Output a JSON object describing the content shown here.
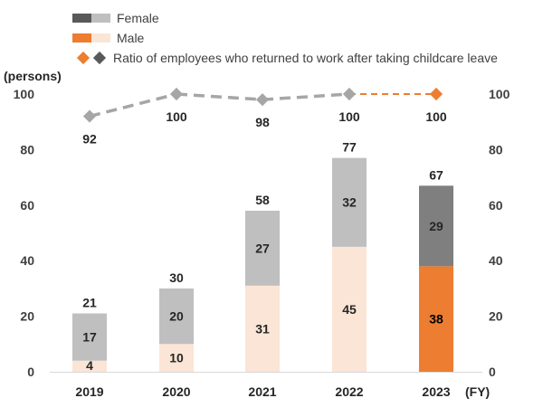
{
  "legend": {
    "female_label": "Female",
    "male_label": "Male",
    "ratio_label": "Ratio of employees who returned to work after taking childcare leave"
  },
  "colors": {
    "female_past": "#bfbfbf",
    "female_current": "#7f7f7f",
    "male_past": "#fbe5d6",
    "male_current": "#ed7d31",
    "ratio_past": "#a6a6a6",
    "ratio_current": "#ed7d31",
    "text": "#262626",
    "axis_text": "#404040"
  },
  "chart_data": {
    "type": "bar",
    "stacked": true,
    "categories": [
      "2019",
      "2020",
      "2021",
      "2022",
      "2023"
    ],
    "series": [
      {
        "name": "Male",
        "values": [
          4,
          10,
          31,
          45,
          38
        ]
      },
      {
        "name": "Female",
        "values": [
          17,
          20,
          27,
          32,
          29
        ]
      }
    ],
    "totals": [
      21,
      30,
      58,
      77,
      67
    ],
    "line_series": {
      "name": "Ratio of employees who returned to work after taking childcare leave",
      "values": [
        92,
        100,
        98,
        100,
        100
      ],
      "axis": "right"
    },
    "ylabel": "(persons)",
    "xlabel": "(FY)",
    "ylim": [
      0,
      100
    ],
    "y2lim": [
      0,
      100
    ],
    "yticks": [
      0,
      20,
      40,
      60,
      80,
      100
    ],
    "grid": false,
    "legend_position": "top"
  }
}
